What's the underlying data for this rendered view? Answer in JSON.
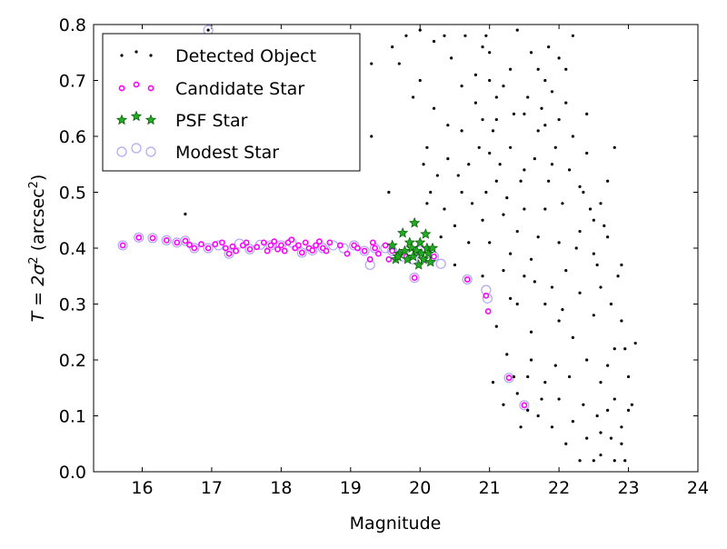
{
  "chart_data": {
    "type": "scatter",
    "title": "",
    "xlabel": "Magnitude",
    "ylabel": {
      "prefix": "T = 2σ",
      "sup1": "2",
      "mid": " (arcsec",
      "sup2": "2",
      "suffix": ")"
    },
    "xlim": [
      15.3,
      24.0
    ],
    "ylim": [
      0.0,
      0.8
    ],
    "xticks": [
      "16",
      "17",
      "18",
      "19",
      "20",
      "21",
      "22",
      "23",
      "24"
    ],
    "yticks": [
      "0.0",
      "0.1",
      "0.2",
      "0.3",
      "0.4",
      "0.5",
      "0.6",
      "0.7",
      "0.8"
    ],
    "legend_position": "top-left",
    "series": [
      {
        "name": "Detected Object",
        "marker": "dot",
        "color": "#000000",
        "points": [
          [
            16.62,
            0.461
          ],
          [
            16.95,
            0.79
          ],
          [
            19.3,
            0.73
          ],
          [
            19.3,
            0.6
          ],
          [
            19.55,
            0.5
          ],
          [
            19.6,
            0.76
          ],
          [
            19.7,
            0.73
          ],
          [
            19.8,
            0.78
          ],
          [
            20.0,
            0.79
          ],
          [
            20.2,
            0.77
          ],
          [
            20.35,
            0.78
          ],
          [
            20.45,
            0.74
          ],
          [
            20.05,
            0.55
          ],
          [
            20.1,
            0.48
          ],
          [
            20.1,
            0.58
          ],
          [
            20.25,
            0.53
          ],
          [
            20.4,
            0.62
          ],
          [
            20.6,
            0.5
          ],
          [
            20.7,
            0.55
          ],
          [
            20.8,
            0.66
          ],
          [
            20.9,
            0.76
          ],
          [
            20.6,
            0.69
          ],
          [
            20.5,
            0.44
          ],
          [
            20.9,
            0.35
          ],
          [
            21.5,
            0.35
          ],
          [
            21.6,
            0.25
          ],
          [
            21.55,
            0.17
          ],
          [
            21.4,
            0.14
          ],
          [
            21.2,
            0.12
          ],
          [
            21.7,
            0.1
          ],
          [
            21.9,
            0.08
          ],
          [
            22.1,
            0.05
          ],
          [
            22.3,
            0.02
          ],
          [
            22.5,
            0.02
          ],
          [
            22.6,
            0.03
          ],
          [
            22.8,
            0.02
          ],
          [
            22.9,
            0.08
          ],
          [
            23.0,
            0.11
          ],
          [
            22.7,
            0.19
          ],
          [
            22.8,
            0.22
          ],
          [
            22.5,
            0.28
          ],
          [
            22.3,
            0.32
          ],
          [
            22.0,
            0.41
          ],
          [
            21.8,
            0.47
          ],
          [
            21.9,
            0.55
          ],
          [
            22.3,
            0.51
          ],
          [
            22.5,
            0.45
          ],
          [
            22.6,
            0.33
          ],
          [
            22.8,
            0.58
          ],
          [
            22.7,
            0.52
          ],
          [
            22.4,
            0.57
          ],
          [
            22.2,
            0.6
          ],
          [
            22.0,
            0.63
          ],
          [
            21.8,
            0.7
          ],
          [
            21.6,
            0.75
          ],
          [
            21.3,
            0.72
          ],
          [
            21.1,
            0.67
          ],
          [
            21.0,
            0.57
          ],
          [
            21.2,
            0.46
          ],
          [
            21.3,
            0.39
          ],
          [
            21.4,
            0.43
          ],
          [
            21.5,
            0.54
          ],
          [
            21.7,
            0.61
          ],
          [
            21.9,
            0.68
          ],
          [
            22.1,
            0.72
          ],
          [
            22.2,
            0.78
          ],
          [
            21.4,
            0.79
          ],
          [
            21.0,
            0.75
          ],
          [
            20.9,
            0.63
          ],
          [
            21.1,
            0.52
          ],
          [
            21.3,
            0.31
          ],
          [
            21.6,
            0.38
          ],
          [
            21.8,
            0.3
          ],
          [
            22.0,
            0.27
          ],
          [
            22.2,
            0.24
          ],
          [
            22.4,
            0.2
          ],
          [
            22.6,
            0.16
          ],
          [
            22.7,
            0.11
          ],
          [
            22.9,
            0.05
          ],
          [
            23.1,
            0.23
          ],
          [
            22.9,
            0.37
          ],
          [
            22.7,
            0.42
          ],
          [
            22.5,
            0.39
          ],
          [
            22.3,
            0.43
          ],
          [
            22.1,
            0.36
          ],
          [
            21.9,
            0.33
          ],
          [
            21.7,
            0.42
          ],
          [
            21.5,
            0.47
          ],
          [
            21.3,
            0.58
          ],
          [
            21.1,
            0.63
          ],
          [
            20.9,
            0.45
          ],
          [
            20.7,
            0.41
          ],
          [
            20.5,
            0.37
          ],
          [
            20.3,
            0.42
          ],
          [
            21.0,
            0.41
          ],
          [
            21.2,
            0.36
          ],
          [
            21.4,
            0.3
          ],
          [
            21.6,
            0.2
          ],
          [
            21.8,
            0.16
          ],
          [
            22.0,
            0.13
          ],
          [
            22.2,
            0.09
          ],
          [
            22.4,
            0.06
          ],
          [
            22.6,
            0.07
          ],
          [
            22.8,
            0.13
          ],
          [
            23.0,
            0.17
          ],
          [
            22.9,
            0.27
          ],
          [
            22.6,
            0.48
          ],
          [
            22.4,
            0.64
          ],
          [
            22.1,
            0.66
          ],
          [
            21.8,
            0.62
          ],
          [
            21.5,
            0.64
          ],
          [
            21.2,
            0.69
          ],
          [
            21.0,
            0.7
          ],
          [
            20.8,
            0.71
          ],
          [
            20.6,
            0.61
          ],
          [
            20.4,
            0.56
          ],
          [
            20.2,
            0.65
          ],
          [
            20.0,
            0.7
          ],
          [
            19.9,
            0.67
          ],
          [
            21.1,
            0.26
          ],
          [
            21.25,
            0.21
          ],
          [
            21.35,
            0.17
          ],
          [
            21.55,
            0.11
          ],
          [
            21.75,
            0.13
          ],
          [
            21.95,
            0.19
          ],
          [
            22.15,
            0.17
          ],
          [
            22.35,
            0.12
          ],
          [
            22.55,
            0.1
          ],
          [
            22.75,
            0.06
          ],
          [
            22.95,
            0.02
          ],
          [
            21.05,
            0.16
          ],
          [
            21.45,
            0.08
          ],
          [
            22.05,
            0.29
          ],
          [
            21.65,
            0.34
          ],
          [
            22.25,
            0.4
          ],
          [
            22.45,
            0.47
          ],
          [
            22.65,
            0.44
          ],
          [
            22.85,
            0.35
          ],
          [
            21.25,
            0.49
          ],
          [
            21.45,
            0.52
          ],
          [
            21.65,
            0.56
          ],
          [
            21.85,
            0.52
          ],
          [
            22.05,
            0.48
          ],
          [
            21.15,
            0.55
          ],
          [
            20.95,
            0.5
          ],
          [
            20.75,
            0.48
          ],
          [
            20.55,
            0.53
          ],
          [
            20.35,
            0.47
          ],
          [
            20.15,
            0.5
          ],
          [
            20.85,
            0.58
          ],
          [
            21.05,
            0.61
          ],
          [
            21.35,
            0.64
          ],
          [
            21.55,
            0.67
          ],
          [
            21.75,
            0.65
          ],
          [
            21.95,
            0.58
          ],
          [
            22.15,
            0.54
          ],
          [
            22.35,
            0.5
          ],
          [
            22.55,
            0.37
          ],
          [
            22.75,
            0.3
          ],
          [
            22.95,
            0.22
          ],
          [
            23.05,
            0.12
          ],
          [
            21.85,
            0.76
          ],
          [
            22.0,
            0.74
          ],
          [
            21.7,
            0.72
          ],
          [
            20.95,
            0.78
          ],
          [
            20.65,
            0.78
          ]
        ]
      },
      {
        "name": "Candidate Star",
        "marker": "circle",
        "color": "#ff00ff",
        "points": [
          [
            15.72,
            0.405
          ],
          [
            15.95,
            0.419
          ],
          [
            16.15,
            0.418
          ],
          [
            16.35,
            0.414
          ],
          [
            16.5,
            0.41
          ],
          [
            16.62,
            0.413
          ],
          [
            16.68,
            0.406
          ],
          [
            16.75,
            0.4
          ],
          [
            16.85,
            0.407
          ],
          [
            16.95,
            0.4
          ],
          [
            17.05,
            0.407
          ],
          [
            17.15,
            0.41
          ],
          [
            17.2,
            0.4
          ],
          [
            17.25,
            0.39
          ],
          [
            17.3,
            0.403
          ],
          [
            17.35,
            0.395
          ],
          [
            17.45,
            0.405
          ],
          [
            17.5,
            0.41
          ],
          [
            17.55,
            0.398
          ],
          [
            17.65,
            0.402
          ],
          [
            17.75,
            0.41
          ],
          [
            17.8,
            0.395
          ],
          [
            17.85,
            0.405
          ],
          [
            17.9,
            0.412
          ],
          [
            17.95,
            0.398
          ],
          [
            18.0,
            0.405
          ],
          [
            18.05,
            0.395
          ],
          [
            18.1,
            0.41
          ],
          [
            18.15,
            0.415
          ],
          [
            18.2,
            0.4
          ],
          [
            18.25,
            0.405
          ],
          [
            18.3,
            0.392
          ],
          [
            18.35,
            0.41
          ],
          [
            18.4,
            0.4
          ],
          [
            18.45,
            0.396
          ],
          [
            18.5,
            0.405
          ],
          [
            18.55,
            0.412
          ],
          [
            18.6,
            0.4
          ],
          [
            18.65,
            0.395
          ],
          [
            18.7,
            0.41
          ],
          [
            18.85,
            0.405
          ],
          [
            18.95,
            0.39
          ],
          [
            19.05,
            0.405
          ],
          [
            19.1,
            0.4
          ],
          [
            19.2,
            0.395
          ],
          [
            19.28,
            0.38
          ],
          [
            19.32,
            0.41
          ],
          [
            19.35,
            0.4
          ],
          [
            19.4,
            0.39
          ],
          [
            19.5,
            0.405
          ],
          [
            19.55,
            0.38
          ],
          [
            19.6,
            0.395
          ],
          [
            19.7,
            0.39
          ],
          [
            19.8,
            0.385
          ],
          [
            19.92,
            0.347
          ],
          [
            20.05,
            0.38
          ],
          [
            20.2,
            0.385
          ],
          [
            20.68,
            0.344
          ],
          [
            20.95,
            0.315
          ],
          [
            20.98,
            0.287
          ],
          [
            21.28,
            0.168
          ],
          [
            21.5,
            0.119
          ]
        ]
      },
      {
        "name": "PSF Star",
        "marker": "star",
        "color": "#22aa22",
        "points": [
          [
            19.6,
            0.405
          ],
          [
            19.65,
            0.38
          ],
          [
            19.7,
            0.39
          ],
          [
            19.75,
            0.427
          ],
          [
            19.78,
            0.395
          ],
          [
            19.82,
            0.38
          ],
          [
            19.85,
            0.41
          ],
          [
            19.88,
            0.4
          ],
          [
            19.9,
            0.385
          ],
          [
            19.92,
            0.445
          ],
          [
            19.95,
            0.395
          ],
          [
            19.98,
            0.37
          ],
          [
            20.0,
            0.41
          ],
          [
            20.02,
            0.39
          ],
          [
            20.05,
            0.38
          ],
          [
            20.08,
            0.425
          ],
          [
            20.1,
            0.4
          ],
          [
            20.12,
            0.39
          ],
          [
            20.15,
            0.375
          ],
          [
            20.18,
            0.4
          ],
          [
            19.68,
            0.385
          ]
        ]
      },
      {
        "name": "Modest Star",
        "marker": "ring",
        "color": "#b0a8f0",
        "points": [
          [
            15.72,
            0.405
          ],
          [
            15.95,
            0.419
          ],
          [
            16.15,
            0.418
          ],
          [
            16.35,
            0.414
          ],
          [
            16.5,
            0.41
          ],
          [
            16.62,
            0.413
          ],
          [
            16.75,
            0.4
          ],
          [
            16.95,
            0.4
          ],
          [
            17.1,
            0.405
          ],
          [
            17.25,
            0.39
          ],
          [
            17.4,
            0.408
          ],
          [
            17.55,
            0.398
          ],
          [
            17.7,
            0.406
          ],
          [
            17.85,
            0.405
          ],
          [
            18.0,
            0.405
          ],
          [
            18.15,
            0.41
          ],
          [
            18.3,
            0.392
          ],
          [
            18.45,
            0.396
          ],
          [
            18.6,
            0.4
          ],
          [
            18.75,
            0.405
          ],
          [
            18.9,
            0.4
          ],
          [
            19.05,
            0.405
          ],
          [
            19.2,
            0.395
          ],
          [
            19.28,
            0.37
          ],
          [
            19.35,
            0.4
          ],
          [
            19.5,
            0.4
          ],
          [
            19.6,
            0.395
          ],
          [
            19.75,
            0.385
          ],
          [
            19.9,
            0.38
          ],
          [
            20.0,
            0.395
          ],
          [
            20.15,
            0.38
          ],
          [
            20.3,
            0.372
          ],
          [
            20.68,
            0.344
          ],
          [
            20.95,
            0.325
          ],
          [
            20.97,
            0.31
          ],
          [
            21.28,
            0.168
          ],
          [
            21.5,
            0.119
          ],
          [
            16.95,
            0.79
          ],
          [
            19.92,
            0.347
          ],
          [
            20.2,
            0.385
          ]
        ]
      }
    ]
  }
}
